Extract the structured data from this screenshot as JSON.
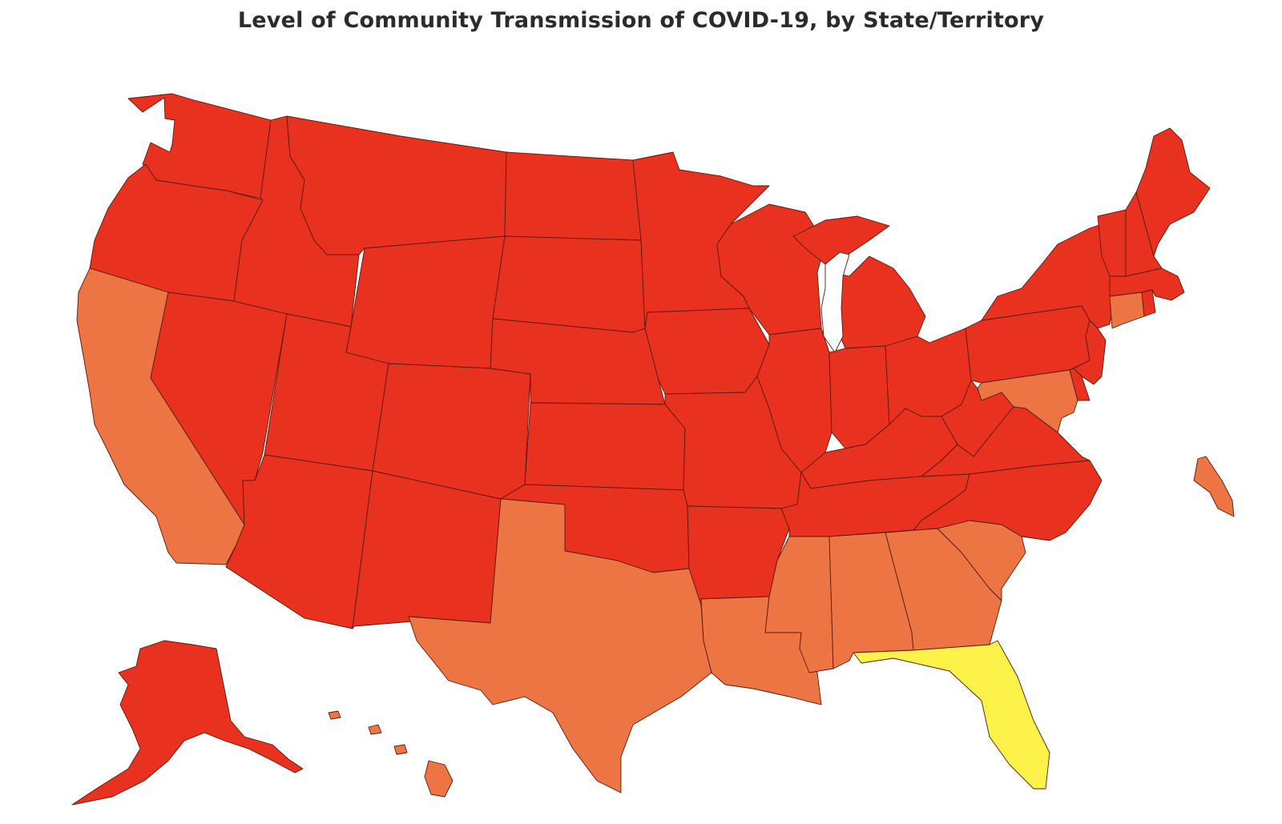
{
  "title": "Level of Community Transmission of COVID-19, by State/Territory",
  "levels": {
    "high": {
      "color": "#e8311f"
    },
    "substantial": {
      "color": "#ec7543"
    },
    "moderate": {
      "color": "#fcf24a"
    }
  },
  "states": [
    {
      "id": "WA",
      "level": "high"
    },
    {
      "id": "OR",
      "level": "high"
    },
    {
      "id": "CA",
      "level": "substantial"
    },
    {
      "id": "NV",
      "level": "high"
    },
    {
      "id": "ID",
      "level": "high"
    },
    {
      "id": "MT",
      "level": "high"
    },
    {
      "id": "WY",
      "level": "high"
    },
    {
      "id": "UT",
      "level": "high"
    },
    {
      "id": "AZ",
      "level": "high"
    },
    {
      "id": "CO",
      "level": "high"
    },
    {
      "id": "NM",
      "level": "high"
    },
    {
      "id": "ND",
      "level": "high"
    },
    {
      "id": "SD",
      "level": "high"
    },
    {
      "id": "NE",
      "level": "high"
    },
    {
      "id": "KS",
      "level": "high"
    },
    {
      "id": "OK",
      "level": "high"
    },
    {
      "id": "TX",
      "level": "substantial"
    },
    {
      "id": "MN",
      "level": "high"
    },
    {
      "id": "IA",
      "level": "high"
    },
    {
      "id": "MO",
      "level": "high"
    },
    {
      "id": "AR",
      "level": "high"
    },
    {
      "id": "LA",
      "level": "substantial"
    },
    {
      "id": "WI",
      "level": "high"
    },
    {
      "id": "IL",
      "level": "high"
    },
    {
      "id": "MI",
      "level": "high"
    },
    {
      "id": "IN",
      "level": "high"
    },
    {
      "id": "OH",
      "level": "high"
    },
    {
      "id": "KY",
      "level": "high"
    },
    {
      "id": "TN",
      "level": "high"
    },
    {
      "id": "MS",
      "level": "substantial"
    },
    {
      "id": "AL",
      "level": "substantial"
    },
    {
      "id": "GA",
      "level": "substantial"
    },
    {
      "id": "FL",
      "level": "moderate"
    },
    {
      "id": "SC",
      "level": "substantial"
    },
    {
      "id": "NC",
      "level": "high"
    },
    {
      "id": "VA",
      "level": "high"
    },
    {
      "id": "WV",
      "level": "high"
    },
    {
      "id": "PA",
      "level": "high"
    },
    {
      "id": "NY",
      "level": "high"
    },
    {
      "id": "NJ",
      "level": "high"
    },
    {
      "id": "DE",
      "level": "high"
    },
    {
      "id": "MD",
      "level": "substantial"
    },
    {
      "id": "CT",
      "level": "substantial"
    },
    {
      "id": "RI",
      "level": "high"
    },
    {
      "id": "MA",
      "level": "high"
    },
    {
      "id": "VT",
      "level": "high"
    },
    {
      "id": "NH",
      "level": "high"
    },
    {
      "id": "ME",
      "level": "high"
    },
    {
      "id": "AK",
      "level": "high"
    },
    {
      "id": "HI",
      "level": "substantial"
    },
    {
      "id": "PR",
      "level": "substantial"
    }
  ]
}
